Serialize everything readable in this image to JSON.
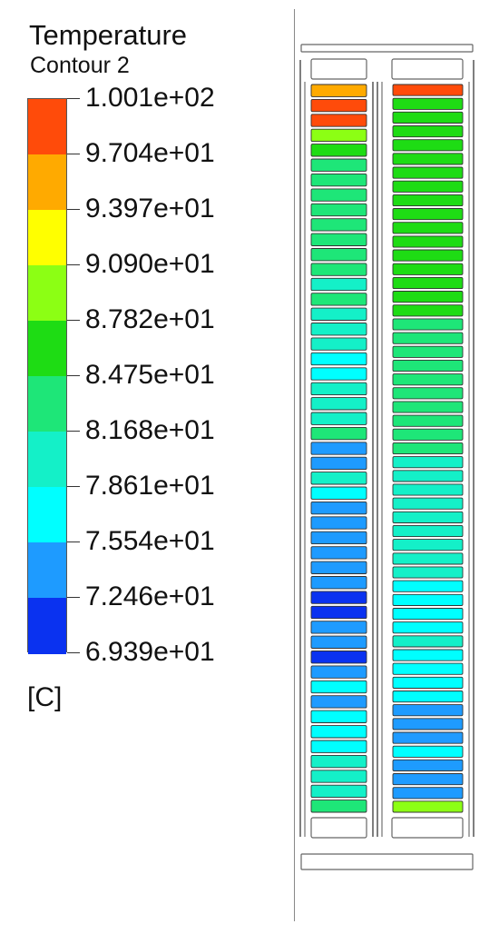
{
  "legend": {
    "title": "Temperature",
    "subtitle": "Contour 2",
    "unit": "[C]",
    "ticks": [
      "1.001e+02",
      "9.704e+01",
      "9.397e+01",
      "9.090e+01",
      "8.782e+01",
      "8.475e+01",
      "8.168e+01",
      "7.861e+01",
      "7.554e+01",
      "7.246e+01",
      "6.939e+01"
    ],
    "bands": [
      "#ff4b0a",
      "#ffaa00",
      "#ffff00",
      "#8cff14",
      "#1edc14",
      "#1ee678",
      "#14f0c8",
      "#00ffff",
      "#1e9bff",
      "#0a32f0"
    ]
  },
  "domain_colors": {
    "orange": "#ffaa00",
    "red": "#ff4b0a",
    "yellow_green": "#8cff14",
    "green": "#1edc14",
    "sea_green": "#1ee678",
    "aqua": "#14f0c8",
    "cyan": "#00ffff",
    "sky_blue": "#1e9bff",
    "blue": "#0a32f0"
  },
  "left_column_levels": [
    "orange",
    "red",
    "red",
    "yellow_green",
    "green",
    "sea_green",
    "sea_green",
    "sea_green",
    "sea_green",
    "sea_green",
    "sea_green",
    "sea_green",
    "sea_green",
    "aqua",
    "sea_green",
    "aqua",
    "aqua",
    "aqua",
    "cyan",
    "cyan",
    "aqua",
    "aqua",
    "aqua",
    "sea_green",
    "sky_blue",
    "sky_blue",
    "aqua",
    "cyan",
    "sky_blue",
    "sky_blue",
    "sky_blue",
    "sky_blue",
    "sky_blue",
    "sky_blue",
    "blue",
    "blue",
    "sky_blue",
    "sky_blue",
    "blue",
    "sky_blue",
    "cyan",
    "sky_blue",
    "cyan",
    "cyan",
    "cyan",
    "aqua",
    "aqua",
    "aqua",
    "sea_green"
  ],
  "right_column_levels": [
    "red",
    "green",
    "green",
    "green",
    "green",
    "green",
    "green",
    "green",
    "green",
    "green",
    "green",
    "green",
    "green",
    "green",
    "green",
    "green",
    "green",
    "sea_green",
    "sea_green",
    "sea_green",
    "sea_green",
    "sea_green",
    "sea_green",
    "sea_green",
    "sea_green",
    "sea_green",
    "sea_green",
    "aqua",
    "aqua",
    "aqua",
    "aqua",
    "aqua",
    "aqua",
    "aqua",
    "aqua",
    "aqua",
    "cyan",
    "cyan",
    "cyan",
    "cyan",
    "aqua",
    "cyan",
    "cyan",
    "cyan",
    "cyan",
    "sky_blue",
    "sky_blue",
    "sky_blue",
    "cyan",
    "sky_blue",
    "sky_blue",
    "sky_blue",
    "yellow_green"
  ]
}
